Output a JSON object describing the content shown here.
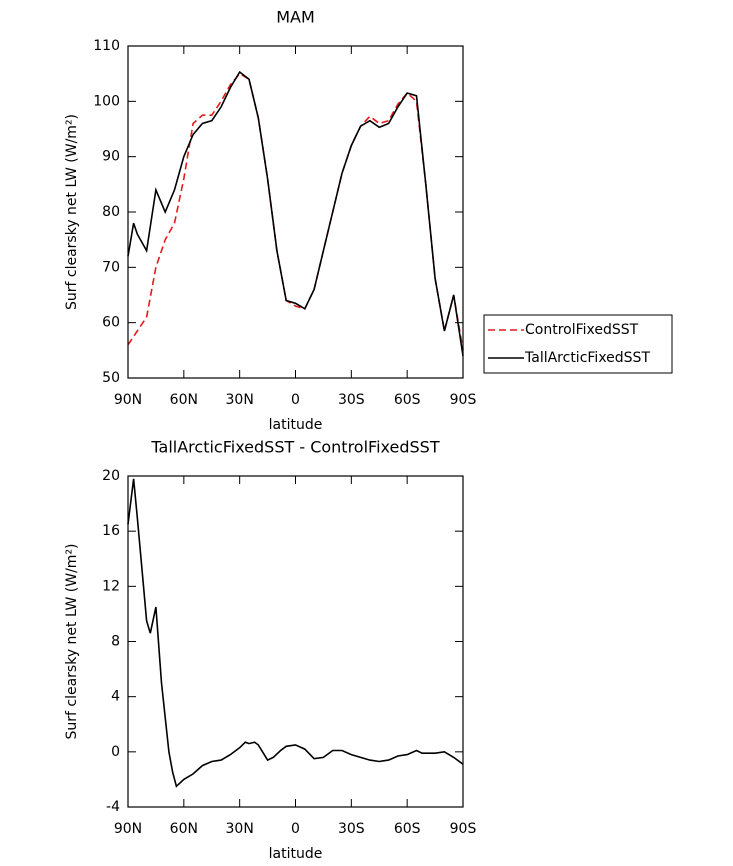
{
  "chart_data": [
    {
      "type": "line",
      "title": "MAM",
      "xlabel": "latitude",
      "ylabel": "Surf clearsky net LW (W/m²)",
      "x": [
        90,
        87,
        85,
        80,
        75,
        70,
        65,
        60,
        55,
        50,
        45,
        40,
        35,
        30,
        25,
        20,
        15,
        10,
        5,
        0,
        -5,
        -10,
        -15,
        -20,
        -25,
        -30,
        -35,
        -40,
        -45,
        -50,
        -55,
        -60,
        -65,
        -70,
        -75,
        -80,
        -85,
        -90
      ],
      "series": [
        {
          "name": "ControlFixedSST",
          "color": "#e41a1c",
          "dash": true,
          "values": [
            56,
            57.5,
            58.5,
            61,
            70,
            75,
            78,
            86,
            96,
            97.5,
            97.5,
            100,
            103,
            105,
            104,
            97,
            86,
            73,
            64,
            63,
            62.5,
            66,
            73,
            80,
            87,
            92,
            95.5,
            97.3,
            96,
            96.5,
            99.5,
            101.5,
            100,
            85,
            68,
            58.5,
            65,
            55
          ]
        },
        {
          "name": "TallArcticFixedSST",
          "color": "#000000",
          "dash": false,
          "values": [
            72,
            78,
            76,
            73,
            84,
            80,
            84,
            90,
            94,
            96,
            96.5,
            99,
            102.5,
            105.3,
            104,
            97,
            86,
            73,
            64,
            63.5,
            62.5,
            66,
            73,
            80,
            87,
            92,
            95.5,
            96.5,
            95.3,
            96,
            99,
            101.5,
            101,
            85,
            68,
            58.5,
            65,
            54
          ]
        }
      ],
      "xlim": [
        90,
        -90
      ],
      "xticks": [
        {
          "value": 90,
          "label": "90N"
        },
        {
          "value": 60,
          "label": "60N"
        },
        {
          "value": 30,
          "label": "30N"
        },
        0,
        {
          "value": -30,
          "label": "30S"
        },
        {
          "value": -60,
          "label": "60S"
        },
        {
          "value": -90,
          "label": "90S"
        }
      ],
      "ylim": [
        50,
        110
      ],
      "yticks": [
        50,
        60,
        70,
        80,
        90,
        100,
        110
      ],
      "legend": "right"
    },
    {
      "type": "line",
      "title": "TallArcticFixedSST - ControlFixedSST",
      "xlabel": "latitude",
      "ylabel": "Surf clearsky net LW (W/m²)",
      "x": [
        90,
        87,
        85,
        82,
        80,
        78,
        75,
        72,
        70,
        68,
        66,
        64,
        60,
        55,
        50,
        45,
        40,
        35,
        30,
        27,
        25,
        22,
        20,
        15,
        12,
        8,
        5,
        0,
        -5,
        -10,
        -15,
        -20,
        -25,
        -30,
        -35,
        -40,
        -45,
        -50,
        -55,
        -60,
        -65,
        -68,
        -70,
        -75,
        -80,
        -85,
        -90
      ],
      "values": [
        16.5,
        19.8,
        17,
        12.5,
        9.5,
        8.6,
        10.5,
        5,
        2.5,
        0,
        -1.5,
        -2.5,
        -2,
        -1.6,
        -1,
        -0.7,
        -0.6,
        -0.2,
        0.3,
        0.7,
        0.6,
        0.7,
        0.5,
        -0.6,
        -0.4,
        0.1,
        0.4,
        0.5,
        0.2,
        -0.5,
        -0.4,
        0.1,
        0.1,
        -0.2,
        -0.4,
        -0.6,
        -0.7,
        -0.6,
        -0.3,
        -0.2,
        0.1,
        -0.1,
        -0.1,
        -0.1,
        0,
        -0.4,
        -0.9
      ],
      "color": "#000000",
      "xlim": [
        90,
        -90
      ],
      "xticks": [
        {
          "value": 90,
          "label": "90N"
        },
        {
          "value": 60,
          "label": "60N"
        },
        {
          "value": 30,
          "label": "30N"
        },
        0,
        {
          "value": -30,
          "label": "30S"
        },
        {
          "value": -60,
          "label": "60S"
        },
        {
          "value": -90,
          "label": "90S"
        }
      ],
      "ylim": [
        -4,
        20
      ],
      "yticks": [
        -4,
        0,
        4,
        8,
        12,
        16,
        20
      ]
    }
  ]
}
